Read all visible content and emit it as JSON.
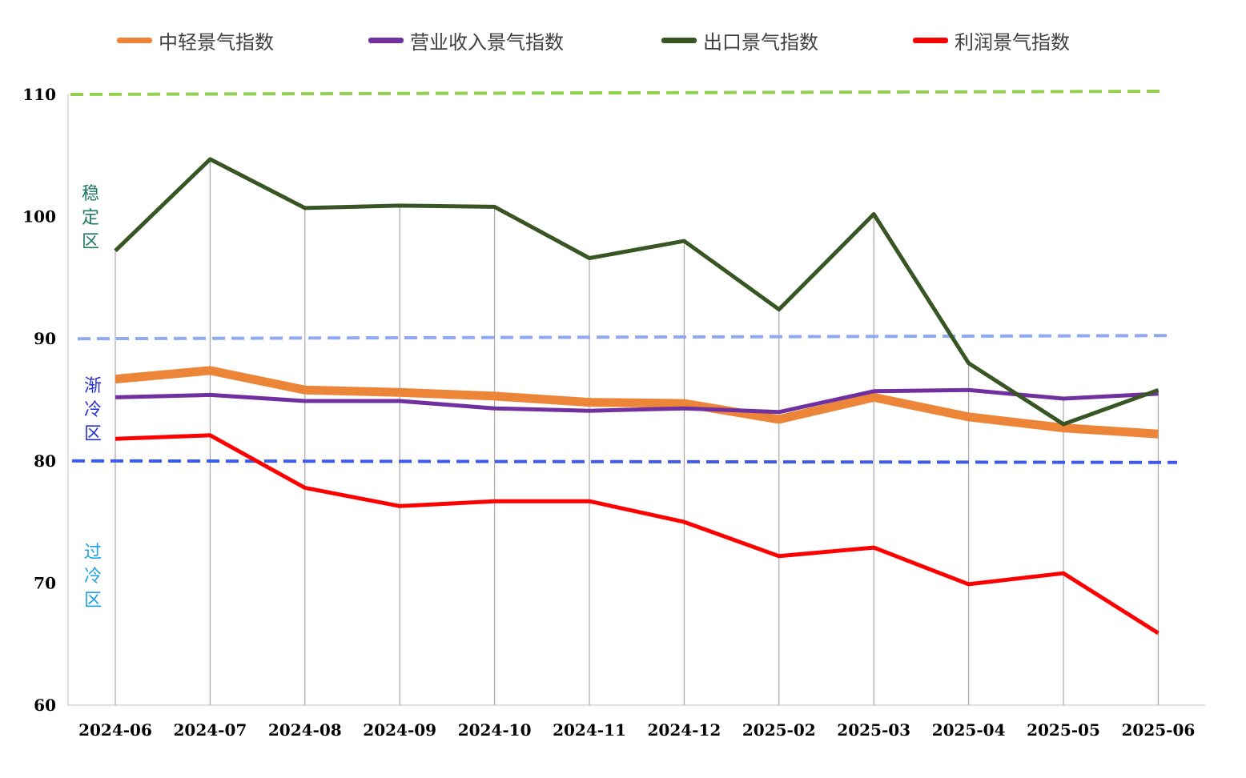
{
  "chart_data": {
    "type": "line",
    "title": "",
    "xlabel": "",
    "ylabel": "",
    "ylim": [
      60,
      110
    ],
    "yticks": [
      60,
      70,
      80,
      90,
      100,
      110
    ],
    "categories": [
      "2024-06",
      "2024-07",
      "2024-08",
      "2024-09",
      "2024-10",
      "2024-11",
      "2024-12",
      "2025-02",
      "2025-03",
      "2025-04",
      "2025-05",
      "2025-06"
    ],
    "series": [
      {
        "name": "中轻景气指数",
        "color": "#ED8538",
        "values": [
          86.7,
          87.4,
          85.8,
          85.6,
          85.3,
          84.8,
          84.7,
          83.4,
          85.2,
          83.6,
          82.7,
          82.2
        ]
      },
      {
        "name": "营业收入景气指数",
        "color": "#7030A0",
        "values": [
          85.2,
          85.4,
          84.9,
          84.9,
          84.3,
          84.1,
          84.3,
          84.0,
          85.7,
          85.8,
          85.1,
          85.5
        ]
      },
      {
        "name": "出口景气指数",
        "color": "#375623",
        "values": [
          97.2,
          104.7,
          100.7,
          100.9,
          100.8,
          96.6,
          98.0,
          92.4,
          100.2,
          88.0,
          83.0,
          85.8
        ]
      },
      {
        "name": "利润景气指数",
        "color": "#FF0000",
        "values": [
          81.8,
          82.1,
          77.8,
          76.3,
          76.7,
          76.7,
          75.0,
          72.2,
          72.9,
          69.9,
          70.8,
          65.9
        ]
      }
    ],
    "reference_lines": [
      {
        "value": 110,
        "color": "#92D050"
      },
      {
        "value": 90,
        "color": "#8FA9F2"
      },
      {
        "value": 80,
        "color": "#3D5BE8"
      }
    ],
    "zones": [
      {
        "label": [
          "稳",
          "定",
          "区"
        ],
        "color": "#1F7A62"
      },
      {
        "label": [
          "渐",
          "冷",
          "区"
        ],
        "color": "#2630D0"
      },
      {
        "label": [
          "过",
          "冷",
          "区"
        ],
        "color": "#1EA0E8"
      }
    ]
  }
}
